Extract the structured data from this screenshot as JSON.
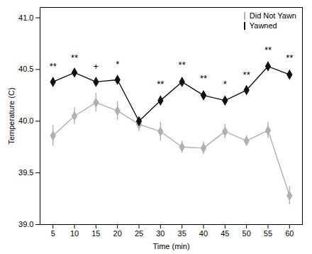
{
  "chart_data": {
    "type": "line",
    "xlabel": "Time (min)",
    "ylabel": "Temperature (C)",
    "x": [
      5,
      10,
      15,
      20,
      25,
      30,
      35,
      40,
      45,
      50,
      55,
      60
    ],
    "series": [
      {
        "name": "Did Not Yawn",
        "color": "#b0b0b0",
        "marker": "diamond",
        "values": [
          39.86,
          40.05,
          40.18,
          40.1,
          39.97,
          39.9,
          39.75,
          39.74,
          39.9,
          39.81,
          39.91,
          39.28
        ],
        "errors": [
          0.1,
          0.08,
          0.09,
          0.09,
          0.07,
          0.09,
          0.06,
          0.06,
          0.07,
          0.05,
          0.08,
          0.09
        ]
      },
      {
        "name": "Yawned",
        "color": "#111111",
        "marker": "diamond",
        "values": [
          40.38,
          40.47,
          40.38,
          40.4,
          40.0,
          40.2,
          40.38,
          40.25,
          40.2,
          40.3,
          40.53,
          40.45
        ],
        "errors": [
          0.04,
          0.03,
          0.03,
          0.03,
          0.03,
          0.04,
          0.04,
          0.04,
          0.03,
          0.04,
          0.04,
          0.04
        ]
      }
    ],
    "annotations": [
      {
        "x": 5,
        "y": 40.5,
        "text": "**"
      },
      {
        "x": 10,
        "y": 40.58,
        "text": "**"
      },
      {
        "x": 15,
        "y": 40.5,
        "text": "+"
      },
      {
        "x": 20,
        "y": 40.52,
        "text": "*"
      },
      {
        "x": 30,
        "y": 40.33,
        "text": "**"
      },
      {
        "x": 35,
        "y": 40.51,
        "text": "**"
      },
      {
        "x": 40,
        "y": 40.38,
        "text": "**"
      },
      {
        "x": 45,
        "y": 40.33,
        "text": "*"
      },
      {
        "x": 50,
        "y": 40.42,
        "text": "**"
      },
      {
        "x": 55,
        "y": 40.66,
        "text": "**"
      },
      {
        "x": 60,
        "y": 40.58,
        "text": "**"
      }
    ],
    "xlim": [
      2,
      63
    ],
    "ylim": [
      39.0,
      41.1
    ],
    "xticks": [
      5,
      10,
      15,
      20,
      25,
      30,
      35,
      40,
      45,
      50,
      55,
      60
    ],
    "yticks": [
      {
        "value": 39.0,
        "label": "39.0"
      },
      39.5,
      {
        "value": 40.0,
        "label": "40.0"
      },
      40.5,
      {
        "value": 41.0,
        "label": "41.0"
      }
    ],
    "legend": "upper right"
  }
}
